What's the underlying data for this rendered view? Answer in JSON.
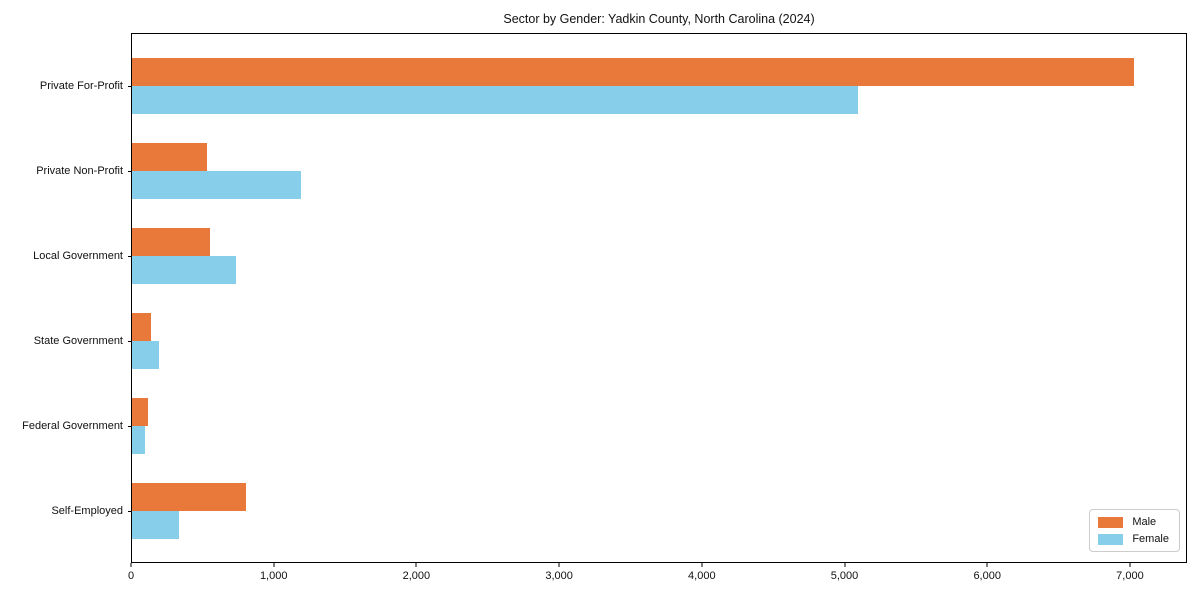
{
  "chart_data": {
    "type": "bar",
    "orientation": "horizontal",
    "title": "Sector by Gender: Yadkin County, North Carolina (2024)",
    "categories": [
      "Private For-Profit",
      "Private Non-Profit",
      "Local Government",
      "State Government",
      "Federal Government",
      "Self-Employed"
    ],
    "series": [
      {
        "name": "Male",
        "color": "#E8793B",
        "values": [
          7035,
          530,
          545,
          135,
          115,
          800
        ]
      },
      {
        "name": "Female",
        "color": "#87CEEB",
        "values": [
          5095,
          1185,
          730,
          190,
          95,
          330
        ]
      }
    ],
    "xlabel": "",
    "ylabel": "",
    "xlim": [
      0,
      7400
    ],
    "x_ticks": [
      0,
      1000,
      2000,
      3000,
      4000,
      5000,
      6000,
      7000
    ],
    "x_tick_labels": [
      "0",
      "1,000",
      "2,000",
      "3,000",
      "4,000",
      "5,000",
      "6,000",
      "7,000"
    ],
    "grid": false,
    "legend_position": "lower right"
  }
}
